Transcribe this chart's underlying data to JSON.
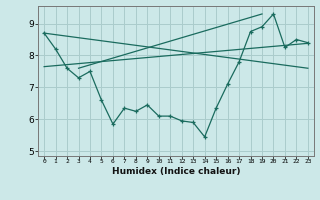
{
  "title": "",
  "xlabel": "Humidex (Indice chaleur)",
  "bg_color": "#cce8e8",
  "grid_color": "#aacccc",
  "line_color": "#1a6b5e",
  "x_data": [
    0,
    1,
    2,
    3,
    4,
    5,
    6,
    7,
    8,
    9,
    10,
    11,
    12,
    13,
    14,
    15,
    16,
    17,
    18,
    19,
    20,
    21,
    22,
    23
  ],
  "y_data": [
    8.7,
    8.2,
    7.6,
    7.3,
    7.5,
    6.6,
    5.85,
    6.35,
    6.25,
    6.45,
    6.1,
    6.1,
    5.95,
    5.9,
    5.45,
    6.35,
    7.1,
    7.8,
    8.75,
    8.9,
    9.3,
    8.25,
    8.5,
    8.4
  ],
  "trend1_x": [
    0,
    23
  ],
  "trend1_y": [
    8.7,
    7.6
  ],
  "trend2_x": [
    0,
    23
  ],
  "trend2_y": [
    7.65,
    8.38
  ],
  "trend3_x": [
    3,
    19
  ],
  "trend3_y": [
    7.6,
    9.3
  ],
  "ylim": [
    4.85,
    9.55
  ],
  "xlim": [
    -0.5,
    23.5
  ],
  "yticks": [
    5,
    6,
    7,
    8,
    9
  ],
  "xticks": [
    0,
    1,
    2,
    3,
    4,
    5,
    6,
    7,
    8,
    9,
    10,
    11,
    12,
    13,
    14,
    15,
    16,
    17,
    18,
    19,
    20,
    21,
    22,
    23
  ]
}
